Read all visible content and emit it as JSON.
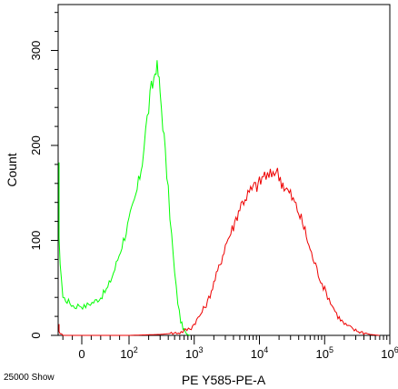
{
  "chart_data": {
    "type": "line",
    "title": "",
    "xlabel": "PE Y585-PE-A",
    "ylabel": "Count",
    "footer_note": "25000 Show",
    "y_axis": {
      "range": [
        0,
        340
      ],
      "ticks": [
        0,
        100,
        200,
        300
      ],
      "tick_labels": [
        "0",
        "100",
        "200",
        "300"
      ]
    },
    "x_axis": {
      "scale": "biexponential",
      "ticks": [
        {
          "label": "0",
          "value": 0
        },
        {
          "label": "10",
          "exp": "2",
          "value": 100
        },
        {
          "label": "10",
          "exp": "3",
          "value": 1000
        },
        {
          "label": "10",
          "exp": "4",
          "value": 10000
        },
        {
          "label": "10",
          "exp": "5",
          "value": 100000
        },
        {
          "label": "10",
          "exp": "6",
          "value": 1000000
        }
      ]
    },
    "colors": {
      "green": "#00ff00",
      "red": "#ee0000",
      "axis": "#000000"
    },
    "series": [
      {
        "color": "#00ff00",
        "x": [
          -60,
          -40,
          -25,
          -15,
          -5,
          5,
          15,
          25,
          40,
          55,
          70,
          85,
          100,
          120,
          140,
          160,
          180,
          200,
          220,
          240,
          260,
          280,
          300,
          330,
          360,
          400,
          450,
          500,
          560,
          620,
          700,
          780,
          850
        ],
        "y": [
          175,
          40,
          34,
          30,
          32,
          30,
          33,
          35,
          40,
          50,
          70,
          95,
          120,
          140,
          160,
          185,
          215,
          240,
          258,
          270,
          285,
          275,
          255,
          225,
          190,
          150,
          105,
          65,
          35,
          15,
          5,
          1,
          0
        ]
      },
      {
        "color": "#ee0000",
        "x": [
          -60,
          -40,
          0,
          100,
          300,
          600,
          900,
          1200,
          1600,
          2000,
          2500,
          3000,
          4000,
          5000,
          6000,
          7000,
          8000,
          10000,
          12000,
          14000,
          17000,
          20000,
          25000,
          30000,
          40000,
          50000,
          60000,
          80000,
          100000,
          130000,
          160000,
          200000,
          300000,
          500000,
          700000
        ],
        "y": [
          12,
          0,
          0,
          0,
          1,
          3,
          8,
          20,
          35,
          55,
          75,
          95,
          115,
          135,
          145,
          150,
          155,
          160,
          170,
          165,
          175,
          168,
          155,
          148,
          130,
          110,
          90,
          65,
          48,
          32,
          20,
          12,
          5,
          1,
          0
        ]
      }
    ]
  }
}
